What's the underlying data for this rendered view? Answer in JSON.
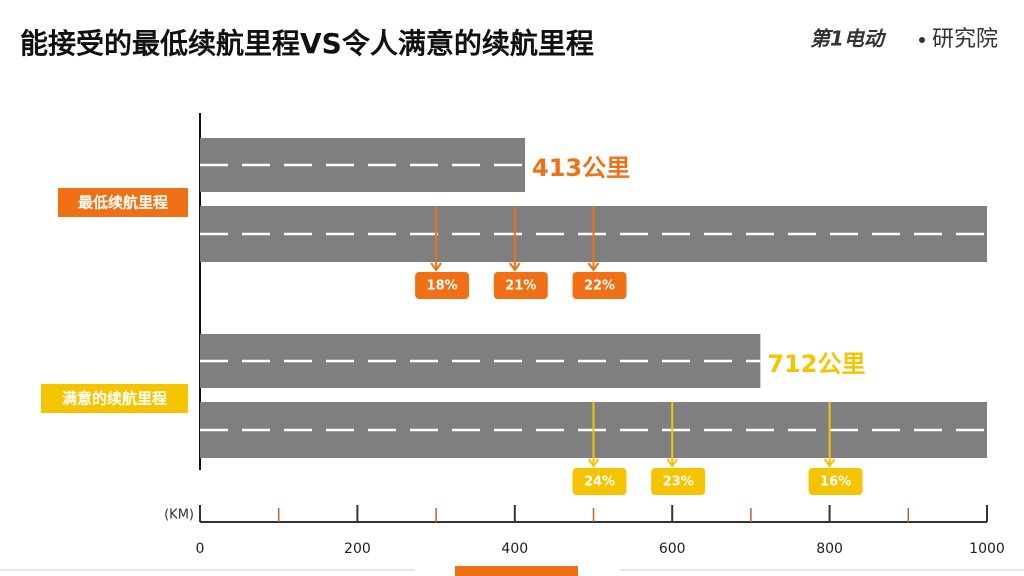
{
  "header": {
    "title": "能接受的最低续航里程VS令人满意的续航里程",
    "brand": "第1电动",
    "brand_sub": "研究院"
  },
  "chart_data": {
    "type": "bar",
    "orientation": "horizontal",
    "xlabel": "(KM)",
    "xlim": [
      0,
      1000
    ],
    "xticks": [
      0,
      200,
      400,
      600,
      800,
      1000
    ],
    "xminorticks": [
      100,
      300,
      500,
      700,
      900
    ],
    "bar_color": "#7f7f7f",
    "groups": [
      {
        "name": "最低续航里程",
        "color": "#f07016",
        "value": 413,
        "value_label": "413公里",
        "markers": [
          {
            "x": 300,
            "value": 18,
            "label": "18%"
          },
          {
            "x": 400,
            "value": 21,
            "label": "21%"
          },
          {
            "x": 500,
            "value": 22,
            "label": "22%"
          }
        ]
      },
      {
        "name": "满意的续航里程",
        "color": "#f5c400",
        "value": 712,
        "value_label": "712公里",
        "markers": [
          {
            "x": 500,
            "value": 24,
            "label": "24%"
          },
          {
            "x": 600,
            "value": 23,
            "label": "23%"
          },
          {
            "x": 800,
            "value": 16,
            "label": "16%"
          }
        ]
      }
    ]
  }
}
